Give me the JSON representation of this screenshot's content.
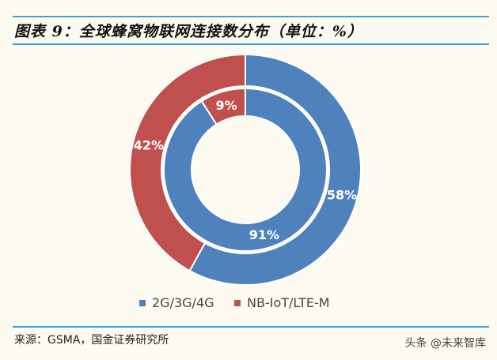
{
  "title": "图表 9：全球蜂窝物联网连接数分布（单位：%）",
  "source": "来源：GSMA，国金证券研究所",
  "watermark": "头条 @未来智库",
  "chart_data": {
    "type": "donut",
    "title": "图表 9：全球蜂窝物联网连接数分布（单位：%）",
    "legend_position": "bottom",
    "categories": [
      "2G/3G/4G",
      "NB-IoT/LTE-M"
    ],
    "colors": [
      "#4f81bd",
      "#c0504d"
    ],
    "rings": [
      {
        "ring": "inner",
        "values": [
          91,
          9
        ],
        "labels": [
          "91%",
          "9%"
        ]
      },
      {
        "ring": "outer",
        "values": [
          58,
          42
        ],
        "labels": [
          "58%",
          "42%"
        ]
      }
    ]
  }
}
